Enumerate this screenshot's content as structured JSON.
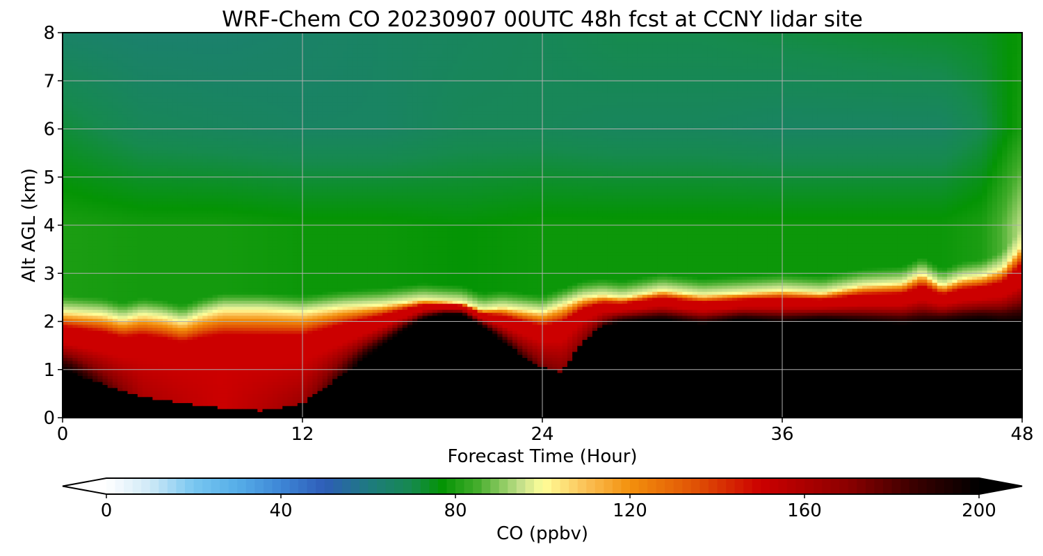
{
  "chart_data": {
    "type": "heatmap",
    "title": "WRF-Chem CO  20230907 00UTC 48h fcst at CCNY lidar site",
    "xlabel": "Forecast Time (Hour)",
    "ylabel": "Alt AGL (km)",
    "xlim": [
      0,
      48
    ],
    "ylim": [
      0,
      8
    ],
    "x_ticks": [
      0,
      12,
      24,
      36,
      48
    ],
    "y_ticks": [
      0,
      1,
      2,
      3,
      4,
      5,
      6,
      7,
      8
    ],
    "grid": true,
    "colorbar": {
      "label": "CO  (ppbv)",
      "min": 0,
      "max": 200,
      "ticks": [
        0,
        40,
        80,
        120,
        160,
        200
      ],
      "extend": "both",
      "placement": "bottom",
      "color_stops": [
        {
          "value": 0,
          "color": "#ffffff"
        },
        {
          "value": 10,
          "color": "#cfe9f7"
        },
        {
          "value": 20,
          "color": "#78c6f0"
        },
        {
          "value": 30,
          "color": "#56aee8"
        },
        {
          "value": 40,
          "color": "#3e86d6"
        },
        {
          "value": 50,
          "color": "#2e5db8"
        },
        {
          "value": 60,
          "color": "#1e7a80"
        },
        {
          "value": 70,
          "color": "#168a4e"
        },
        {
          "value": 77,
          "color": "#049404"
        },
        {
          "value": 85,
          "color": "#44ad2c"
        },
        {
          "value": 95,
          "color": "#c4e08a"
        },
        {
          "value": 100,
          "color": "#ffff9a"
        },
        {
          "value": 110,
          "color": "#fbc055"
        },
        {
          "value": 120,
          "color": "#f3900c"
        },
        {
          "value": 135,
          "color": "#e05205"
        },
        {
          "value": 150,
          "color": "#cc0000"
        },
        {
          "value": 170,
          "color": "#8b0000"
        },
        {
          "value": 185,
          "color": "#3b0000"
        },
        {
          "value": 200,
          "color": "#000000"
        }
      ]
    },
    "boundary_layer_top_km": {
      "x": [
        0,
        2,
        3,
        4,
        5,
        6,
        7,
        8,
        10,
        12,
        14,
        16,
        18,
        20,
        21,
        22,
        24,
        25,
        26,
        27,
        28,
        30,
        32,
        34,
        36,
        38,
        40,
        42,
        43,
        44,
        45,
        46,
        47,
        48
      ],
      "y": [
        2.2,
        2.15,
        2.05,
        2.15,
        2.1,
        2.0,
        2.15,
        2.25,
        2.25,
        2.2,
        2.3,
        2.35,
        2.45,
        2.4,
        2.25,
        2.3,
        2.2,
        2.35,
        2.5,
        2.55,
        2.5,
        2.65,
        2.55,
        2.6,
        2.65,
        2.6,
        2.75,
        2.8,
        3.0,
        2.75,
        2.9,
        2.95,
        3.1,
        3.6
      ]
    },
    "black_core_top_km": {
      "x": [
        0,
        2,
        4,
        6,
        8,
        10,
        12,
        14,
        15,
        16,
        17,
        18,
        19,
        20,
        21,
        22,
        23,
        24,
        25,
        26,
        27,
        28,
        30,
        32,
        34,
        36,
        38,
        40,
        42,
        44,
        46,
        47,
        48
      ],
      "y": [
        1.0,
        0.7,
        0.45,
        0.3,
        0.2,
        0.15,
        0.3,
        0.9,
        1.2,
        1.5,
        1.8,
        2.05,
        2.15,
        2.15,
        1.9,
        1.6,
        1.3,
        1.05,
        0.95,
        1.6,
        1.9,
        2.0,
        2.05,
        1.95,
        2.05,
        2.0,
        2.05,
        2.0,
        1.95,
        2.0,
        2.05,
        2.0,
        2.0
      ]
    },
    "free_troposphere_ppbv": {
      "x": [
        0,
        4,
        8,
        12,
        16,
        20,
        24,
        28,
        32,
        36,
        40,
        44,
        46,
        47,
        48
      ],
      "low_km": [
        80,
        79,
        79,
        78,
        78,
        77,
        78,
        78,
        78,
        78,
        78,
        78,
        80,
        86,
        95
      ],
      "mid_km": [
        72,
        68,
        67,
        66,
        66,
        68,
        68,
        67,
        67,
        66,
        66,
        66,
        70,
        75,
        80
      ],
      "high_km": [
        65,
        64,
        64,
        65,
        66,
        67,
        68,
        70,
        70,
        71,
        72,
        73,
        74,
        76,
        78
      ]
    },
    "surface_layer_ppbv": {
      "x": [
        0,
        4,
        8,
        12,
        16,
        20,
        24,
        26,
        28,
        32,
        36,
        40,
        44,
        48
      ],
      "values": [
        205,
        160,
        150,
        165,
        210,
        215,
        175,
        170,
        205,
        210,
        210,
        210,
        210,
        210
      ]
    }
  }
}
